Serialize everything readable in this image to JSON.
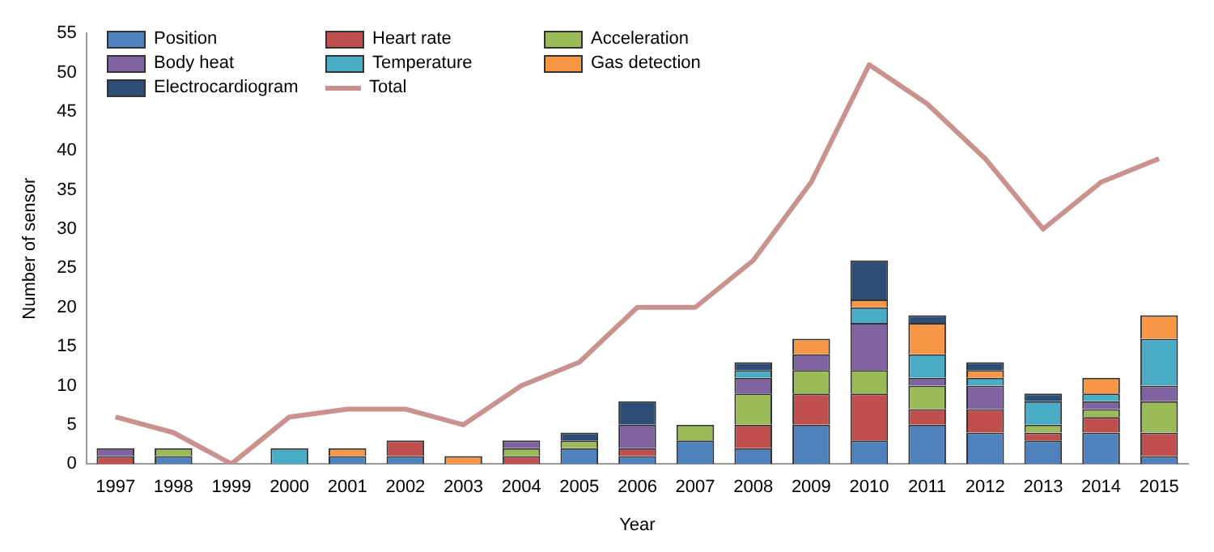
{
  "chart_data": {
    "type": "bar",
    "stacked": true,
    "xlabel": "Year",
    "ylabel": "Number of sensor",
    "categories": [
      "1997",
      "1998",
      "1999",
      "2000",
      "2001",
      "2002",
      "2003",
      "2004",
      "2005",
      "2006",
      "2007",
      "2008",
      "2009",
      "2010",
      "2011",
      "2012",
      "2013",
      "2014",
      "2015"
    ],
    "series": [
      {
        "name": "Position",
        "color": "#4f81bd",
        "values": [
          0,
          1,
          0,
          0,
          1,
          1,
          0,
          0,
          2,
          1,
          3,
          2,
          5,
          3,
          5,
          4,
          3,
          4,
          1
        ]
      },
      {
        "name": "Heart rate",
        "color": "#c0504d",
        "values": [
          1,
          0,
          0,
          0,
          0,
          2,
          0,
          1,
          0,
          1,
          0,
          3,
          4,
          6,
          2,
          3,
          1,
          2,
          3
        ]
      },
      {
        "name": "Acceleration",
        "color": "#9bbb59",
        "values": [
          0,
          1,
          0,
          0,
          0,
          0,
          0,
          1,
          1,
          0,
          2,
          4,
          3,
          3,
          3,
          0,
          1,
          1,
          4
        ]
      },
      {
        "name": "Body heat",
        "color": "#8064a2",
        "values": [
          1,
          0,
          0,
          0,
          0,
          0,
          0,
          1,
          0,
          3,
          0,
          2,
          2,
          6,
          1,
          3,
          0,
          1,
          2
        ]
      },
      {
        "name": "Temperature",
        "color": "#4bacc6",
        "values": [
          0,
          0,
          0,
          2,
          0,
          0,
          0,
          0,
          0,
          0,
          0,
          1,
          0,
          2,
          3,
          1,
          3,
          1,
          6
        ]
      },
      {
        "name": "Gas detection",
        "color": "#f79646",
        "values": [
          0,
          0,
          0,
          0,
          1,
          0,
          1,
          0,
          0,
          0,
          0,
          0,
          2,
          1,
          4,
          1,
          0,
          2,
          3
        ]
      },
      {
        "name": "Electrocardiogram",
        "color": "#2c4d75",
        "values": [
          0,
          0,
          0,
          0,
          0,
          0,
          0,
          0,
          1,
          3,
          0,
          1,
          0,
          5,
          1,
          1,
          1,
          0,
          0
        ]
      },
      {
        "name": "Total",
        "type": "line",
        "color": "#c9928f",
        "values": [
          6,
          4,
          0,
          6,
          7,
          7,
          5,
          10,
          13,
          20,
          20,
          26,
          36,
          51,
          46,
          39,
          30,
          36,
          39
        ]
      }
    ],
    "ylim": [
      0,
      55
    ],
    "yticks": [
      0,
      5,
      10,
      15,
      20,
      25,
      30,
      35,
      40,
      45,
      50,
      55
    ],
    "grid": false,
    "legend": "top left",
    "marker": "none"
  }
}
